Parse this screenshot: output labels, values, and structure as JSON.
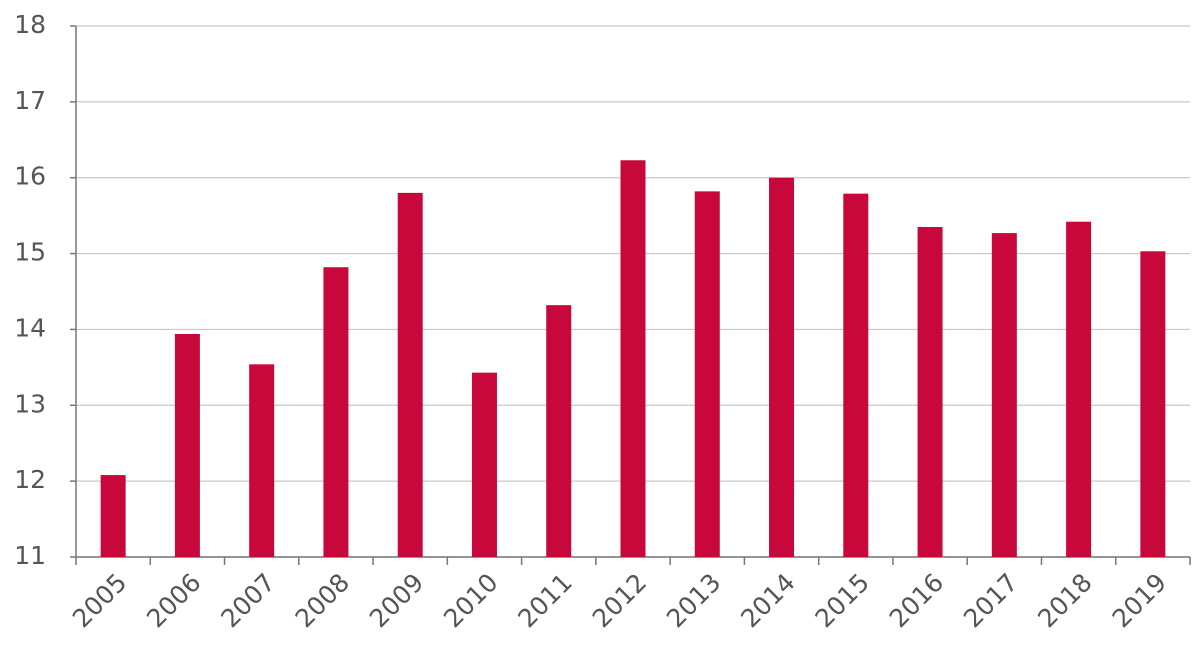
{
  "chart_data": {
    "type": "bar",
    "categories": [
      "2005",
      "2006",
      "2007",
      "2008",
      "2009",
      "2010",
      "2011",
      "2012",
      "2013",
      "2014",
      "2015",
      "2016",
      "2017",
      "2018",
      "2019"
    ],
    "values": [
      12.08,
      13.94,
      13.54,
      14.82,
      15.8,
      13.43,
      14.32,
      16.23,
      15.82,
      16.0,
      15.79,
      15.35,
      15.27,
      15.42,
      15.03
    ],
    "color": "#c8083a",
    "ylim": [
      11,
      18
    ],
    "yticks": [
      11,
      12,
      13,
      14,
      15,
      16,
      17,
      18
    ],
    "grid": true
  }
}
